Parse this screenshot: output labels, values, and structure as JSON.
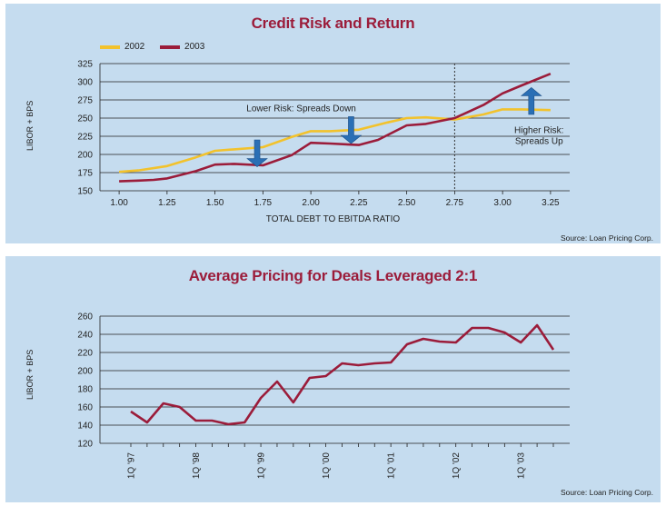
{
  "colors": {
    "panel_bg": "#c5dcef",
    "title": "#9b1c3a",
    "series_2002": "#f2c22c",
    "series_2003": "#9b1c3a",
    "arrow": "#2a6fb5",
    "grid": "#222222"
  },
  "chart_data": [
    {
      "type": "line",
      "title": "Credit Risk and Return",
      "xlabel": "TOTAL DEBT TO EBITDA RATIO",
      "ylabel": "LIBOR + BPS",
      "source": "Source: Loan Pricing Corp.",
      "xlim": [
        0.9,
        3.35
      ],
      "ylim": [
        150,
        325
      ],
      "xticks": [
        "1.00",
        "1.25",
        "1.50",
        "1.75",
        "2.00",
        "2.25",
        "2.50",
        "2.75",
        "3.00",
        "3.25"
      ],
      "yticks": [
        "325",
        "300",
        "275",
        "250",
        "225",
        "200",
        "175",
        "150"
      ],
      "legend": "top-left",
      "grid": true,
      "series": [
        {
          "name": "2002",
          "color": "#f2c22c",
          "x": [
            1.0,
            1.1,
            1.25,
            1.4,
            1.5,
            1.6,
            1.75,
            1.9,
            2.0,
            2.1,
            2.25,
            2.4,
            2.5,
            2.6,
            2.75,
            2.9,
            3.0,
            3.1,
            3.25
          ],
          "y": [
            176,
            178,
            184,
            196,
            205,
            207,
            210,
            224,
            232,
            232,
            234,
            244,
            250,
            251,
            248,
            255,
            262,
            262,
            261
          ]
        },
        {
          "name": "2003",
          "color": "#9b1c3a",
          "x": [
            1.0,
            1.1,
            1.18,
            1.25,
            1.4,
            1.5,
            1.6,
            1.75,
            1.9,
            2.0,
            2.1,
            2.25,
            2.35,
            2.5,
            2.6,
            2.75,
            2.9,
            3.0,
            3.1,
            3.25
          ],
          "y": [
            163,
            164,
            165,
            167,
            177,
            186,
            187,
            185,
            199,
            216,
            215,
            213,
            220,
            240,
            242,
            250,
            268,
            284,
            295,
            311
          ]
        }
      ],
      "vline_x": 2.75,
      "annotations": [
        {
          "text": "Lower Risk: Spreads Down",
          "x": 1.95,
          "y": 264
        },
        {
          "text": "Higher Risk:",
          "x": 3.19,
          "y": 234
        },
        {
          "text": "Spreads Up",
          "x": 3.19,
          "y": 219
        }
      ],
      "arrows": [
        {
          "direction": "down",
          "x": 1.72,
          "y_start": 220,
          "y_end": 183
        },
        {
          "direction": "down",
          "x": 2.21,
          "y_start": 252,
          "y_end": 215
        },
        {
          "direction": "up",
          "x": 3.15,
          "y_start": 255,
          "y_end": 292
        }
      ]
    },
    {
      "type": "line",
      "title": "Average Pricing for Deals Leveraged 2:1",
      "ylabel": "LIBOR + BPS",
      "source": "Source: Loan Pricing Corp.",
      "ylim": [
        120,
        260
      ],
      "yticks": [
        "260",
        "240",
        "220",
        "200",
        "180",
        "160",
        "140",
        "120"
      ],
      "xticks": [
        "1Q '97",
        "1Q '98",
        "1Q '99",
        "1Q '00",
        "1Q '01",
        "1Q '02",
        "1Q '03"
      ],
      "xtick_index": [
        0,
        4,
        8,
        12,
        16,
        20,
        24
      ],
      "grid": true,
      "series": [
        {
          "name": "",
          "color": "#9b1c3a",
          "values": [
            155,
            143,
            164,
            160,
            145,
            145,
            141,
            143,
            170,
            188,
            165,
            192,
            194,
            208,
            206,
            208,
            209,
            229,
            235,
            232,
            231,
            247,
            247,
            242,
            231,
            250,
            223
          ]
        }
      ]
    }
  ]
}
